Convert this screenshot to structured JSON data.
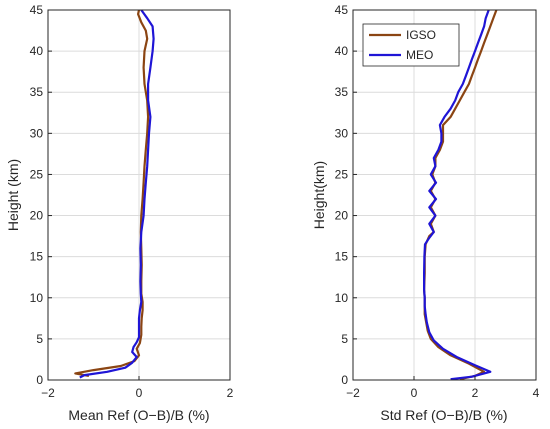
{
  "chart_data": [
    {
      "type": "line",
      "xlabel": "Mean Ref (O−B)/B (%)",
      "ylabel": "Height (km)",
      "xlim": [
        -2,
        2
      ],
      "ylim": [
        0,
        45
      ],
      "xticks": [
        -2,
        0,
        2
      ],
      "yticks": [
        0,
        5,
        10,
        15,
        20,
        25,
        30,
        35,
        40,
        45
      ],
      "grid": true,
      "legend": false,
      "series": [
        {
          "name": "IGSO",
          "color": "#8B4513",
          "points": [
            [
              -1.1,
              0.5
            ],
            [
              -1.4,
              0.8
            ],
            [
              -1.0,
              1.2
            ],
            [
              -0.4,
              1.7
            ],
            [
              -0.1,
              2.3
            ],
            [
              0.0,
              3.0
            ],
            [
              -0.05,
              3.8
            ],
            [
              0.02,
              4.5
            ],
            [
              0.05,
              5.5
            ],
            [
              0.05,
              6.5
            ],
            [
              0.06,
              7.5
            ],
            [
              0.08,
              8.5
            ],
            [
              0.08,
              9.5
            ],
            [
              0.05,
              10.5
            ],
            [
              0.05,
              12
            ],
            [
              0.06,
              14
            ],
            [
              0.05,
              16
            ],
            [
              0.04,
              18
            ],
            [
              0.05,
              20
            ],
            [
              0.08,
              22
            ],
            [
              0.1,
              24
            ],
            [
              0.12,
              26
            ],
            [
              0.15,
              28
            ],
            [
              0.18,
              30
            ],
            [
              0.2,
              32
            ],
            [
              0.18,
              34
            ],
            [
              0.12,
              36
            ],
            [
              0.1,
              38
            ],
            [
              0.12,
              40
            ],
            [
              0.18,
              41.5
            ],
            [
              0.15,
              42.5
            ],
            [
              0.05,
              43.5
            ],
            [
              -0.02,
              44.5
            ],
            [
              0.0,
              45
            ]
          ]
        },
        {
          "name": "MEO",
          "color": "#1f15d6",
          "points": [
            [
              -1.3,
              0.3
            ],
            [
              -1.2,
              0.6
            ],
            [
              -0.7,
              1.0
            ],
            [
              -0.3,
              1.5
            ],
            [
              -0.15,
              2.1
            ],
            [
              -0.05,
              2.8
            ],
            [
              -0.15,
              3.4
            ],
            [
              -0.12,
              4.0
            ],
            [
              -0.05,
              4.6
            ],
            [
              0.0,
              5.2
            ],
            [
              0.0,
              6.5
            ],
            [
              0.0,
              7.5
            ],
            [
              0.02,
              8.5
            ],
            [
              0.05,
              9.5
            ],
            [
              0.04,
              10.5
            ],
            [
              0.03,
              12
            ],
            [
              0.04,
              14
            ],
            [
              0.03,
              16
            ],
            [
              0.05,
              18
            ],
            [
              0.1,
              20
            ],
            [
              0.12,
              22
            ],
            [
              0.15,
              24
            ],
            [
              0.18,
              26
            ],
            [
              0.2,
              28
            ],
            [
              0.22,
              30
            ],
            [
              0.25,
              32
            ],
            [
              0.2,
              34
            ],
            [
              0.2,
              36
            ],
            [
              0.25,
              38
            ],
            [
              0.3,
              40
            ],
            [
              0.32,
              41.5
            ],
            [
              0.3,
              43
            ],
            [
              0.18,
              44
            ],
            [
              0.05,
              45
            ]
          ]
        }
      ]
    },
    {
      "type": "line",
      "xlabel": "Std Ref (O−B)/B (%)",
      "ylabel": "Height(km)",
      "xlim": [
        -2,
        4
      ],
      "ylim": [
        0,
        45
      ],
      "xticks": [
        -2,
        0,
        2,
        4
      ],
      "yticks": [
        0,
        5,
        10,
        15,
        20,
        25,
        30,
        35,
        40,
        45
      ],
      "grid": true,
      "legend": true,
      "legend_position": "top-left",
      "series": [
        {
          "name": "IGSO",
          "color": "#8B4513",
          "points": [
            [
              1.5,
              0.1
            ],
            [
              2.0,
              0.5
            ],
            [
              2.3,
              1.0
            ],
            [
              1.8,
              2.0
            ],
            [
              1.2,
              3.0
            ],
            [
              0.8,
              4.0
            ],
            [
              0.55,
              5.0
            ],
            [
              0.45,
              6.0
            ],
            [
              0.4,
              7.0
            ],
            [
              0.35,
              8.0
            ],
            [
              0.35,
              9.0
            ],
            [
              0.35,
              10
            ],
            [
              0.33,
              11
            ],
            [
              0.35,
              13
            ],
            [
              0.35,
              15
            ],
            [
              0.38,
              16.5
            ],
            [
              0.5,
              17.5
            ],
            [
              0.65,
              18
            ],
            [
              0.55,
              19
            ],
            [
              0.7,
              20
            ],
            [
              0.55,
              21
            ],
            [
              0.7,
              22
            ],
            [
              0.55,
              23
            ],
            [
              0.7,
              24
            ],
            [
              0.6,
              25
            ],
            [
              0.7,
              26
            ],
            [
              0.7,
              27
            ],
            [
              0.85,
              28
            ],
            [
              0.95,
              29
            ],
            [
              0.95,
              30
            ],
            [
              0.95,
              31
            ],
            [
              1.2,
              32
            ],
            [
              1.35,
              33
            ],
            [
              1.5,
              34
            ],
            [
              1.65,
              35
            ],
            [
              1.8,
              36
            ],
            [
              1.9,
              37
            ],
            [
              2.0,
              38
            ],
            [
              2.1,
              39
            ],
            [
              2.2,
              40
            ],
            [
              2.3,
              41
            ],
            [
              2.4,
              42
            ],
            [
              2.5,
              43
            ],
            [
              2.6,
              44
            ],
            [
              2.7,
              45
            ]
          ]
        },
        {
          "name": "MEO",
          "color": "#1f15d6",
          "points": [
            [
              1.2,
              0.1
            ],
            [
              1.9,
              0.4
            ],
            [
              2.5,
              1.0
            ],
            [
              2.0,
              1.8
            ],
            [
              1.4,
              2.8
            ],
            [
              0.95,
              3.8
            ],
            [
              0.65,
              4.8
            ],
            [
              0.5,
              5.8
            ],
            [
              0.42,
              7.0
            ],
            [
              0.38,
              8.0
            ],
            [
              0.35,
              9.0
            ],
            [
              0.35,
              10
            ],
            [
              0.33,
              11
            ],
            [
              0.33,
              13
            ],
            [
              0.34,
              15
            ],
            [
              0.36,
              16.5
            ],
            [
              0.5,
              17.3
            ],
            [
              0.65,
              18
            ],
            [
              0.5,
              19
            ],
            [
              0.7,
              20
            ],
            [
              0.5,
              21
            ],
            [
              0.72,
              22
            ],
            [
              0.5,
              23
            ],
            [
              0.72,
              24
            ],
            [
              0.55,
              25
            ],
            [
              0.7,
              26
            ],
            [
              0.65,
              27
            ],
            [
              0.8,
              28
            ],
            [
              0.9,
              29
            ],
            [
              0.9,
              30
            ],
            [
              0.85,
              31
            ],
            [
              1.0,
              32
            ],
            [
              1.2,
              33
            ],
            [
              1.35,
              34
            ],
            [
              1.45,
              35
            ],
            [
              1.6,
              36
            ],
            [
              1.7,
              37
            ],
            [
              1.8,
              38
            ],
            [
              1.9,
              39
            ],
            [
              2.0,
              40
            ],
            [
              2.1,
              41
            ],
            [
              2.2,
              42
            ],
            [
              2.3,
              43
            ],
            [
              2.35,
              44
            ],
            [
              2.45,
              45
            ]
          ]
        }
      ]
    }
  ]
}
